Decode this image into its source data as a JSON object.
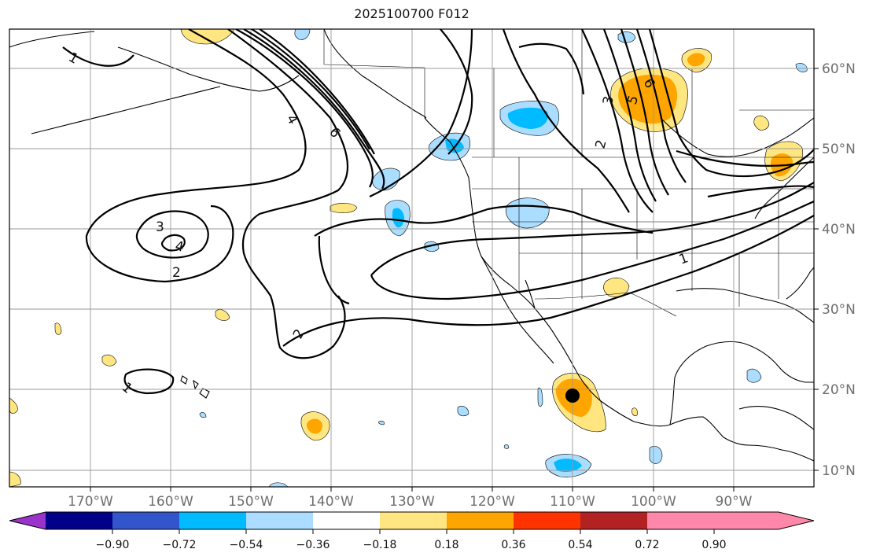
{
  "title": "2025100700 F012",
  "map": {
    "lon_labels": [
      "170°W",
      "160°W",
      "150°W",
      "140°W",
      "130°W",
      "120°W",
      "110°W",
      "100°W",
      "90°W"
    ],
    "lat_labels": [
      "60°N",
      "50°N",
      "40°N",
      "30°N",
      "20°N",
      "10°N"
    ],
    "grid": true,
    "marker": {
      "name": "storm-center",
      "lon": -110,
      "lat": 19
    }
  },
  "contours": {
    "labels": [
      "1",
      "1",
      "2",
      "2",
      "2",
      "3",
      "3",
      "4",
      "4",
      "5",
      "6",
      "6",
      "1"
    ]
  },
  "colorbar": {
    "labels": [
      "−0.90",
      "−0.72",
      "−0.54",
      "−0.36",
      "−0.18",
      "0.18",
      "0.36",
      "0.54",
      "0.72",
      "0.90"
    ],
    "colors": [
      "#9933cc",
      "#000088",
      "#3355cc",
      "#00bbff",
      "#aaddff",
      "#ffffff",
      "#ffe680",
      "#ffa500",
      "#ff3300",
      "#b22222",
      "#ff88aa"
    ]
  }
}
